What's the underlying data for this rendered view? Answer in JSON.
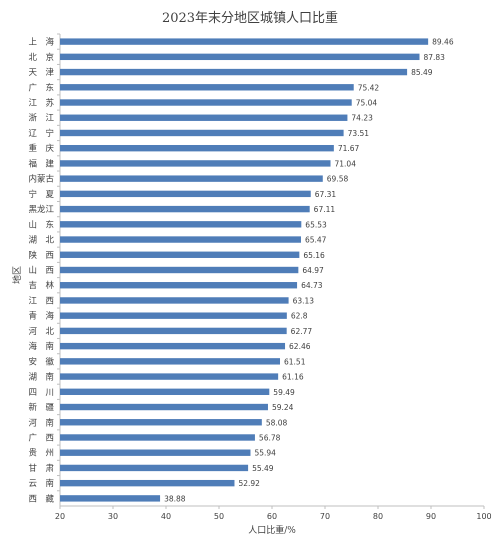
{
  "chart_data": {
    "type": "bar",
    "orientation": "horizontal",
    "title": "2023年末分地区城镇人口比重",
    "xlabel": "人口比重/%",
    "ylabel": "地区",
    "xlim": [
      20,
      100
    ],
    "xticks": [
      20,
      30,
      40,
      50,
      60,
      70,
      80,
      90,
      100
    ],
    "grid": false,
    "bar_color": "#4F7DB8",
    "categories": [
      "上海",
      "北京",
      "天津",
      "广东",
      "江苏",
      "浙江",
      "辽宁",
      "重庆",
      "福建",
      "内蒙古",
      "宁夏",
      "黑龙江",
      "山东",
      "湖北",
      "陕西",
      "山西",
      "吉林",
      "江西",
      "青海",
      "河北",
      "海南",
      "安徽",
      "湖南",
      "四川",
      "新疆",
      "河南",
      "广西",
      "贵州",
      "甘肃",
      "云南",
      "西藏"
    ],
    "values": [
      89.46,
      87.83,
      85.49,
      75.42,
      75.04,
      74.23,
      73.51,
      71.67,
      71.04,
      69.58,
      67.31,
      67.11,
      65.53,
      65.47,
      65.16,
      64.97,
      64.73,
      63.13,
      62.8,
      62.77,
      62.46,
      61.51,
      61.16,
      59.49,
      59.24,
      58.08,
      56.78,
      55.94,
      55.49,
      52.92,
      38.88
    ],
    "value_labels": [
      "89.46",
      "87.83",
      "85.49",
      "75.42",
      "75.04",
      "74.23",
      "73.51",
      "71.67",
      "71.04",
      "69.58",
      "67.31",
      "67.11",
      "65.53",
      "65.47",
      "65.16",
      "64.97",
      "64.73",
      "63.13",
      "62.8",
      "62.77",
      "62.46",
      "61.51",
      "61.16",
      "59.49",
      "59.24",
      "58.08",
      "56.78",
      "55.94",
      "55.49",
      "52.92",
      "38.88"
    ]
  }
}
